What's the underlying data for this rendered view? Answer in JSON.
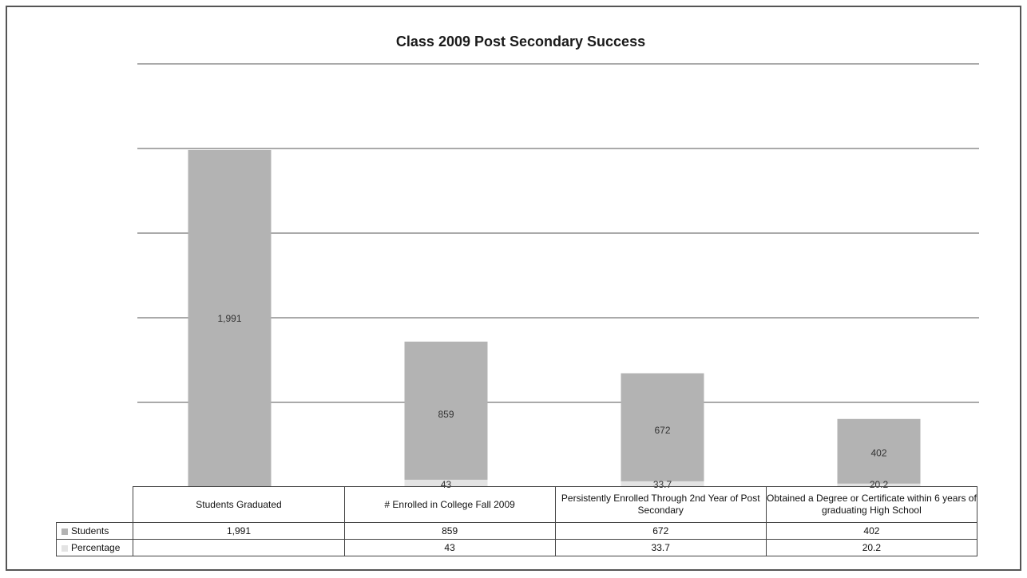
{
  "chart_data": {
    "type": "bar",
    "title": "Class 2009  Post Secondary Success",
    "categories": [
      "Students Graduated",
      "# Enrolled in College Fall 2009",
      "Persistently Enrolled Through 2nd Year of Post Secondary",
      "Obtained a Degree or Certificate within 6 years of graduating High School"
    ],
    "series": [
      {
        "name": "Students",
        "color": "#b3b3b3",
        "values": [
          1991,
          859,
          672,
          402
        ],
        "labels": [
          "1,991",
          "859",
          "672",
          "402"
        ]
      },
      {
        "name": "Percentage",
        "color": "#e3e3e3",
        "values": [
          null,
          43,
          33.7,
          20.2
        ],
        "labels": [
          "",
          "43",
          "33.7",
          "20.2"
        ]
      }
    ],
    "ylim": [
      0,
      2500
    ],
    "grid": true,
    "legend": "data-table"
  }
}
